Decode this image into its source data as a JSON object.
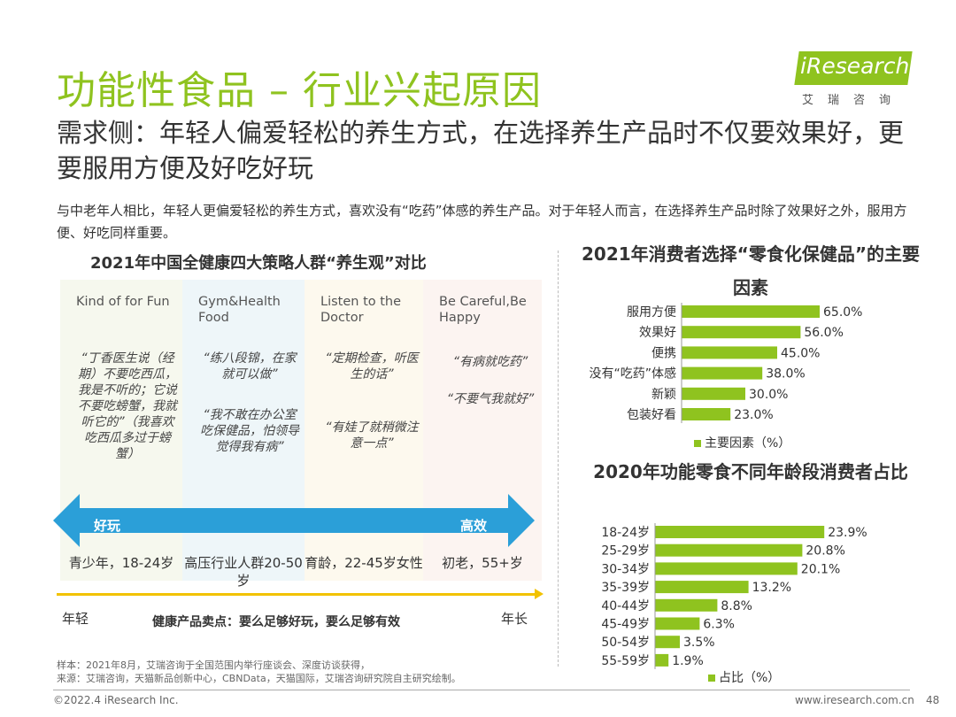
{
  "header": {
    "title": "功能性食品 – 行业兴起原因",
    "logo_text": "iResearch",
    "logo_sub": "艾瑞咨询"
  },
  "subtitle": "需求侧：年轻人偏爱轻松的养生方式，在选择养生产品时不仅要效果好，更要服用方便及好吃好玩",
  "intro": "与中老年人相比，年轻人更偏爱轻松的养生方式，喜欢没有“吃药”体感的养生产品。对于年轻人而言，在选择养生产品时除了效果好之外，服用方便、好吃同样重要。",
  "left": {
    "title": "2021年中国全健康四大策略人群“养生观”对比",
    "columns": [
      {
        "name": "Kind of for Fun",
        "bg": "#f6f8ee",
        "quotes": [
          "“丁香医生说（经期）不要吃西瓜，我是不听的；它说不要吃螃蟹，我就听它的”（我喜欢吃西瓜多过于螃蟹）"
        ],
        "group": "青少年，18-24岁"
      },
      {
        "name": "Gym&Health Food",
        "bg": "#eef6f9",
        "quotes": [
          "“练八段锦，在家就可以做”",
          "“我不敢在办公室吃保健品，怕领导觉得我有病”"
        ],
        "group": "高压行业人群20-50岁"
      },
      {
        "name": "Listen to the Doctor",
        "bg": "#fdf9ee",
        "quotes": [
          "“定期检查，听医生的话”",
          "“有娃了就稍微注意一点”"
        ],
        "group": "育龄，22-45岁女性"
      },
      {
        "name": "Be Careful,Be Happy",
        "bg": "#fcf4f1",
        "quotes": [
          "“有病就吃药”",
          "“不要气我就好”"
        ],
        "group": "初老，55+岁"
      }
    ],
    "arrow_left": "好玩",
    "arrow_right": "高效",
    "axis_left": "年轻",
    "axis_right": "年长",
    "selling_point": "健康产品卖点：要么足够好玩，要么足够有效",
    "accent": "#2b9fd8",
    "line_color": "#f2c200"
  },
  "chart_data": [
    {
      "type": "bar",
      "orientation": "horizontal",
      "title": "2021年消费者选择“零食化保健品”的主要因素",
      "categories": [
        "服用方便",
        "效果好",
        "便携",
        "没有“吃药”体感",
        "新颖",
        "包装好看"
      ],
      "values": [
        65.0,
        56.0,
        45.0,
        38.0,
        30.0,
        23.0
      ],
      "value_labels": [
        "65.0%",
        "56.0%",
        "45.0%",
        "38.0%",
        "30.0%",
        "23.0%"
      ],
      "legend": "主要因素（%）",
      "color": "#8fc31f",
      "xlim": [
        0,
        100
      ]
    },
    {
      "type": "bar",
      "orientation": "horizontal",
      "title": "2020年功能零食不同年龄段消费者占比",
      "categories": [
        "18-24岁",
        "25-29岁",
        "30-34岁",
        "35-39岁",
        "40-44岁",
        "45-49岁",
        "50-54岁",
        "55-59岁"
      ],
      "values": [
        23.9,
        20.8,
        20.1,
        13.2,
        8.8,
        6.3,
        3.5,
        1.9
      ],
      "value_labels": [
        "23.9%",
        "20.8%",
        "20.1%",
        "13.2%",
        "8.8%",
        "6.3%",
        "3.5%",
        "1.9%"
      ],
      "legend": "占比（%）",
      "color": "#8fc31f",
      "xlim": [
        0,
        30
      ]
    }
  ],
  "footer": {
    "note1": "样本：2021年8月，艾瑞咨询于全国范围内举行座谈会、深度访谈获得，",
    "note2": "来源：艾瑞咨询，天猫新品创新中心，CBNData，天猫国际，艾瑞咨询研究院自主研究绘制。",
    "copyright": "©2022.4 iResearch Inc.",
    "url": "www.iresearch.com.cn",
    "page": "48"
  }
}
